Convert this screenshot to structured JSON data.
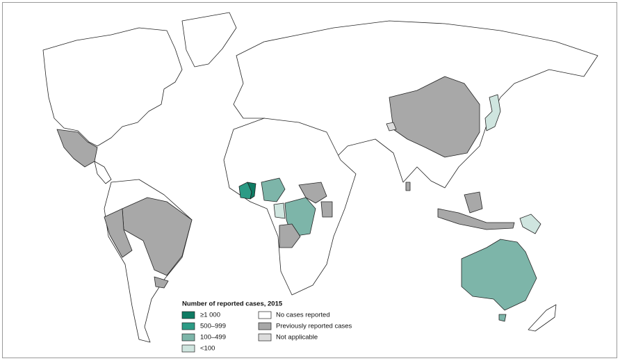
{
  "legend": {
    "title": "Number of reported cases, 2015",
    "items": [
      {
        "label": "≥1 000",
        "color": "#0e7b63"
      },
      {
        "label": "500–999",
        "color": "#2c9b85"
      },
      {
        "label": "100–499",
        "color": "#7db5a9"
      },
      {
        "label": "<100",
        "color": "#cfe5df"
      },
      {
        "label": "No cases reported",
        "color": "#ffffff"
      },
      {
        "label": "Previously reported cases",
        "color": "#a8a8a8"
      },
      {
        "label": "Not applicable",
        "color": "#dcdcdc"
      }
    ]
  }
}
